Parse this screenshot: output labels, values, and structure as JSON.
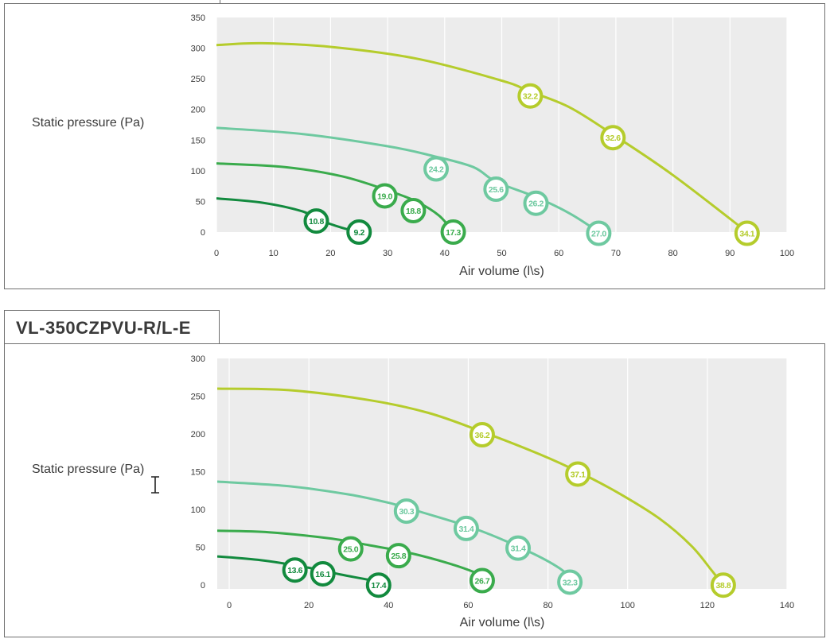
{
  "model_title": "VL-350CZPVU-R/L-E",
  "chart_data": [
    {
      "type": "line",
      "xlabel": "Air volume (l\\s)",
      "ylabel": "Static pressure (Pa)",
      "xlim": [
        0,
        100
      ],
      "ylim": [
        0,
        350
      ],
      "xticks": [
        0,
        10,
        20,
        30,
        40,
        50,
        60,
        70,
        80,
        90,
        100
      ],
      "yticks": [
        0,
        50,
        100,
        150,
        200,
        250,
        300,
        350
      ],
      "grid": "vertical",
      "series": [
        {
          "color": "#b5cc2c",
          "points": [
            [
              0,
              305
            ],
            [
              8,
              308
            ],
            [
              20,
              302
            ],
            [
              35,
              283
            ],
            [
              50,
              247
            ],
            [
              55,
              229
            ],
            [
              62,
              203
            ],
            [
              70,
              156
            ],
            [
              80,
              93
            ],
            [
              93,
              0
            ]
          ]
        },
        {
          "color": "#6ec9a0",
          "points": [
            [
              0,
              170
            ],
            [
              15,
              160
            ],
            [
              30,
              140
            ],
            [
              38,
              124
            ],
            [
              45,
              106
            ],
            [
              49,
              82
            ],
            [
              56,
              57
            ],
            [
              62,
              30
            ],
            [
              67,
              0
            ]
          ]
        },
        {
          "color": "#3aab4c",
          "points": [
            [
              0,
              112
            ],
            [
              12,
              106
            ],
            [
              22,
              91
            ],
            [
              30,
              68
            ],
            [
              35,
              50
            ],
            [
              39,
              27
            ],
            [
              41.5,
              0
            ]
          ]
        },
        {
          "color": "#128a3e",
          "points": [
            [
              0,
              55
            ],
            [
              8,
              48
            ],
            [
              15,
              34
            ],
            [
              18,
              20
            ],
            [
              22,
              7
            ],
            [
              25,
              0
            ]
          ]
        }
      ],
      "markers": [
        {
          "series": 0,
          "x": 55,
          "y": 222,
          "label": "32.2"
        },
        {
          "series": 0,
          "x": 69.5,
          "y": 154,
          "label": "32.6"
        },
        {
          "series": 0,
          "x": 93,
          "y": -2,
          "label": "34.1"
        },
        {
          "series": 1,
          "x": 38.5,
          "y": 103,
          "label": "24.2"
        },
        {
          "series": 1,
          "x": 49,
          "y": 70,
          "label": "25.6"
        },
        {
          "series": 1,
          "x": 56,
          "y": 47,
          "label": "26.2"
        },
        {
          "series": 1,
          "x": 67,
          "y": -2,
          "label": "27.0"
        },
        {
          "series": 2,
          "x": 29.5,
          "y": 59,
          "label": "19.0"
        },
        {
          "series": 2,
          "x": 34.5,
          "y": 35,
          "label": "18.8"
        },
        {
          "series": 2,
          "x": 41.5,
          "y": 0,
          "label": "17.3"
        },
        {
          "series": 3,
          "x": 17.5,
          "y": 18,
          "label": "10.8"
        },
        {
          "series": 3,
          "x": 25,
          "y": 0,
          "label": "9.2"
        }
      ]
    },
    {
      "type": "line",
      "xlabel": "Air volume (l\\s)",
      "ylabel": "Static pressure (Pa)",
      "xlim": [
        -3,
        140
      ],
      "ylim": [
        -5,
        300
      ],
      "xticks": [
        0,
        20,
        40,
        60,
        80,
        100,
        120,
        140
      ],
      "yticks": [
        0,
        50,
        100,
        150,
        200,
        250,
        300
      ],
      "grid": "vertical",
      "series": [
        {
          "color": "#b5cc2c",
          "points": [
            [
              -3,
              260
            ],
            [
              15,
              258
            ],
            [
              35,
              245
            ],
            [
              50,
              228
            ],
            [
              63,
              204
            ],
            [
              78,
              173
            ],
            [
              88,
              149
            ],
            [
              98,
              121
            ],
            [
              108,
              88
            ],
            [
              116,
              52
            ],
            [
              121,
              20
            ],
            [
              124,
              0
            ]
          ]
        },
        {
          "color": "#6ec9a0",
          "points": [
            [
              -3,
              137
            ],
            [
              15,
              131
            ],
            [
              30,
              120
            ],
            [
              40,
              109
            ],
            [
              48,
              97
            ],
            [
              62,
              74
            ],
            [
              75,
              45
            ],
            [
              83,
              22
            ],
            [
              87,
              2
            ]
          ]
        },
        {
          "color": "#3aab4c",
          "points": [
            [
              -3,
              72
            ],
            [
              10,
              70
            ],
            [
              25,
              62
            ],
            [
              35,
              53
            ],
            [
              45,
              43
            ],
            [
              55,
              29
            ],
            [
              62,
              16
            ],
            [
              66,
              4
            ]
          ]
        },
        {
          "color": "#128a3e",
          "points": [
            [
              -3,
              38
            ],
            [
              8,
              33
            ],
            [
              20,
              23
            ],
            [
              28,
              14
            ],
            [
              35,
              7
            ],
            [
              40,
              0
            ]
          ]
        }
      ],
      "markers": [
        {
          "series": 0,
          "x": 63.5,
          "y": 199,
          "label": "36.2"
        },
        {
          "series": 0,
          "x": 87.5,
          "y": 147,
          "label": "37.1"
        },
        {
          "series": 0,
          "x": 124,
          "y": 0,
          "label": "38.8"
        },
        {
          "series": 1,
          "x": 44.5,
          "y": 98,
          "label": "30.3"
        },
        {
          "series": 1,
          "x": 59.5,
          "y": 75,
          "label": "31.4"
        },
        {
          "series": 1,
          "x": 72.5,
          "y": 49,
          "label": "31.4"
        },
        {
          "series": 1,
          "x": 85.5,
          "y": 4,
          "label": "32.3"
        },
        {
          "series": 2,
          "x": 30.5,
          "y": 48,
          "label": "25.0"
        },
        {
          "series": 2,
          "x": 42.5,
          "y": 39,
          "label": "25.8"
        },
        {
          "series": 2,
          "x": 63.5,
          "y": 6,
          "label": "26.7"
        },
        {
          "series": 3,
          "x": 16.5,
          "y": 20,
          "label": "13.6"
        },
        {
          "series": 3,
          "x": 23.5,
          "y": 15,
          "label": "16.1"
        },
        {
          "series": 3,
          "x": 37.5,
          "y": 0,
          "label": "17.4"
        }
      ]
    }
  ]
}
